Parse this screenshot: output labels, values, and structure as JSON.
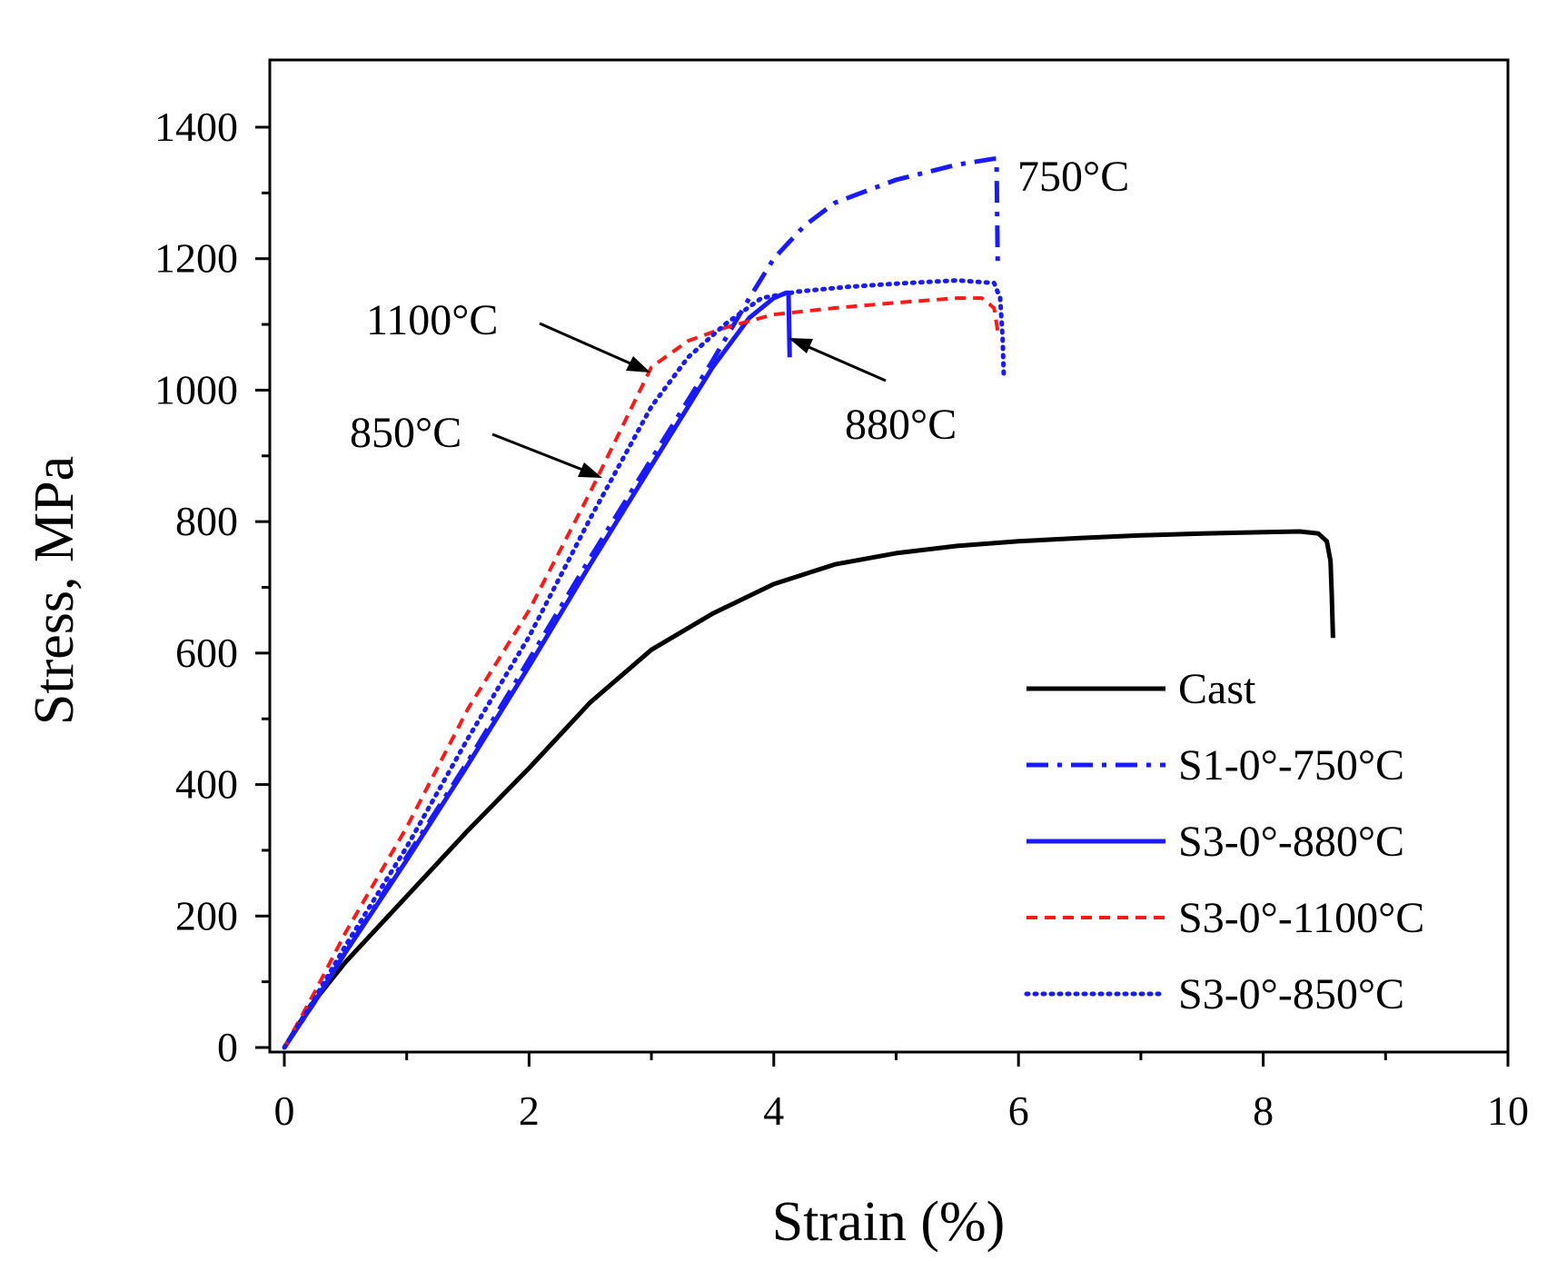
{
  "chart_data": {
    "type": "line",
    "title": "",
    "xlabel": "Strain (%)",
    "ylabel": "Stress, MPa",
    "xlim": [
      0,
      10
    ],
    "ylim": [
      0,
      1500
    ],
    "xticks": [
      0,
      2,
      4,
      6,
      8,
      10
    ],
    "yticks": [
      0,
      200,
      400,
      600,
      800,
      1000,
      1200,
      1400
    ],
    "grid": false,
    "legend_position": "bottom-right",
    "series": [
      {
        "name": "Cast",
        "color": "#000000",
        "dash": "solid",
        "points": [
          [
            0,
            0
          ],
          [
            0.2,
            60
          ],
          [
            0.5,
            130
          ],
          [
            1.0,
            230
          ],
          [
            1.5,
            330
          ],
          [
            2.0,
            425
          ],
          [
            2.5,
            525
          ],
          [
            3.0,
            605
          ],
          [
            3.5,
            660
          ],
          [
            4.0,
            705
          ],
          [
            4.5,
            735
          ],
          [
            5.0,
            752
          ],
          [
            5.5,
            763
          ],
          [
            6.0,
            770
          ],
          [
            6.5,
            775
          ],
          [
            7.0,
            779
          ],
          [
            7.5,
            782
          ],
          [
            8.0,
            784
          ],
          [
            8.3,
            785
          ],
          [
            8.45,
            782
          ],
          [
            8.52,
            770
          ],
          [
            8.55,
            740
          ],
          [
            8.56,
            690
          ],
          [
            8.57,
            623
          ]
        ]
      },
      {
        "name": "S1-0°-750°C",
        "color": "#1a1aff",
        "dash": "dashdot",
        "points": [
          [
            0,
            0
          ],
          [
            0.25,
            70
          ],
          [
            0.5,
            145
          ],
          [
            1.0,
            290
          ],
          [
            1.5,
            435
          ],
          [
            2.0,
            590
          ],
          [
            2.5,
            745
          ],
          [
            3.0,
            895
          ],
          [
            3.5,
            1045
          ],
          [
            3.8,
            1140
          ],
          [
            4.0,
            1200
          ],
          [
            4.25,
            1250
          ],
          [
            4.5,
            1285
          ],
          [
            5.0,
            1320
          ],
          [
            5.5,
            1343
          ],
          [
            5.8,
            1352
          ],
          [
            5.82,
            1352
          ],
          [
            5.83,
            1195
          ]
        ]
      },
      {
        "name": "S3-0°-880°C",
        "color": "#1a1aff",
        "dash": "solid",
        "points": [
          [
            0,
            0
          ],
          [
            0.25,
            70
          ],
          [
            0.5,
            145
          ],
          [
            1.0,
            285
          ],
          [
            1.5,
            430
          ],
          [
            2.0,
            580
          ],
          [
            2.5,
            735
          ],
          [
            3.0,
            885
          ],
          [
            3.5,
            1035
          ],
          [
            3.8,
            1110
          ],
          [
            4.0,
            1140
          ],
          [
            4.1,
            1148
          ],
          [
            4.12,
            1148
          ],
          [
            4.13,
            1050
          ]
        ]
      },
      {
        "name": "S3-0°-1100°C",
        "color": "#ff1a1a",
        "dash": "dashed",
        "points": [
          [
            0,
            0
          ],
          [
            0.25,
            85
          ],
          [
            0.5,
            175
          ],
          [
            1.0,
            335
          ],
          [
            1.5,
            515
          ],
          [
            2.0,
            665
          ],
          [
            2.5,
            845
          ],
          [
            3.0,
            1035
          ],
          [
            3.3,
            1075
          ],
          [
            3.6,
            1095
          ],
          [
            4.0,
            1115
          ],
          [
            4.5,
            1125
          ],
          [
            5.0,
            1133
          ],
          [
            5.5,
            1140
          ],
          [
            5.7,
            1140
          ],
          [
            5.8,
            1125
          ],
          [
            5.83,
            1090
          ],
          [
            5.84,
            1080
          ]
        ]
      },
      {
        "name": "S3-0°-850°C",
        "color": "#1a1aff",
        "dash": "dotted",
        "points": [
          [
            0,
            0
          ],
          [
            0.25,
            75
          ],
          [
            0.5,
            155
          ],
          [
            1.0,
            305
          ],
          [
            1.5,
            470
          ],
          [
            2.0,
            625
          ],
          [
            2.5,
            805
          ],
          [
            3.0,
            975
          ],
          [
            3.3,
            1050
          ],
          [
            3.6,
            1100
          ],
          [
            3.9,
            1140
          ],
          [
            4.2,
            1150
          ],
          [
            4.6,
            1157
          ],
          [
            5.0,
            1162
          ],
          [
            5.5,
            1167
          ],
          [
            5.8,
            1163
          ],
          [
            5.85,
            1140
          ],
          [
            5.87,
            1080
          ],
          [
            5.88,
            1020
          ]
        ]
      }
    ],
    "annotations": [
      {
        "text": "750°C",
        "series": "S1-0°-750°C"
      },
      {
        "text": "1100°C",
        "series": "S3-0°-1100°C"
      },
      {
        "text": "850°C",
        "series": "S3-0°-850°C"
      },
      {
        "text": "880°C",
        "series": "S3-0°-880°C"
      }
    ]
  }
}
